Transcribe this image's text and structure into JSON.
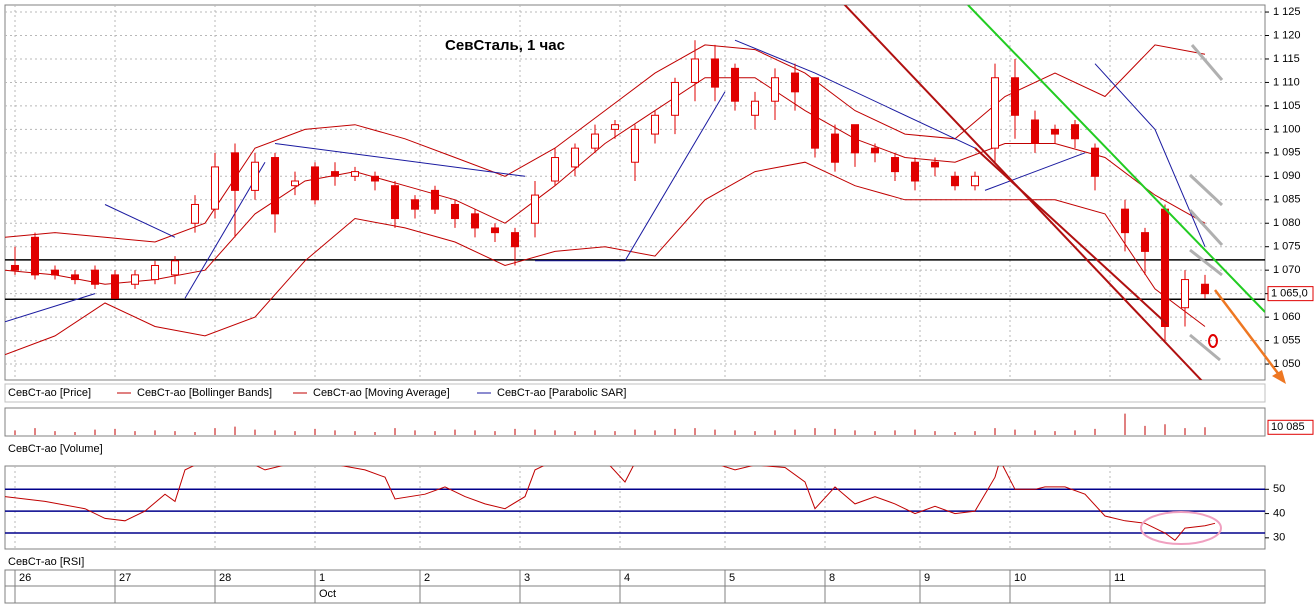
{
  "chart_data": [
    {
      "type": "candlestick",
      "title": "СевСталь, 1 час",
      "name": "СевСт-ао [Price]",
      "up_color": "#ffffff",
      "down_color": "#e00000",
      "line_color": "#c00000",
      "xlim": [
        0,
        126
      ],
      "ylim": [
        1046.6,
        1126.5
      ],
      "yticks": [
        {
          "value": 1050,
          "label": "1 050"
        },
        {
          "value": 1055,
          "label": "1 055"
        },
        {
          "value": 1060,
          "label": "1 060"
        },
        {
          "value": 1065,
          "label": "1 065"
        },
        {
          "value": 1070,
          "label": "1 070"
        },
        {
          "value": 1075,
          "label": "1 075"
        },
        {
          "value": 1080,
          "label": "1 080"
        },
        {
          "value": 1085,
          "label": "1 085"
        },
        {
          "value": 1090,
          "label": "1 090"
        },
        {
          "value": 1095,
          "label": "1 095"
        },
        {
          "value": 1100,
          "label": "1 100"
        },
        {
          "value": 1105,
          "label": "1 105"
        },
        {
          "value": 1110,
          "label": "1 110"
        },
        {
          "value": 1115,
          "label": "1 115"
        },
        {
          "value": 1120,
          "label": "1 120"
        },
        {
          "value": 1125,
          "label": "1 125"
        }
      ],
      "xticks": [
        {
          "value": 1.5,
          "label": "26"
        },
        {
          "value": 11.5,
          "label": "27"
        },
        {
          "value": 21.5,
          "label": "28"
        },
        {
          "value": 31.5,
          "label": "1"
        },
        {
          "value": 42,
          "label": "2"
        },
        {
          "value": 52,
          "label": "3"
        },
        {
          "value": 62,
          "label": "4"
        },
        {
          "value": 72.5,
          "label": "5"
        },
        {
          "value": 82.5,
          "label": "8"
        },
        {
          "value": 92,
          "label": "9"
        },
        {
          "value": 101,
          "label": "10"
        },
        {
          "value": 111,
          "label": "11"
        }
      ],
      "month_label": {
        "value": 31.5,
        "label": "Oct"
      },
      "grid": true,
      "hlines": [
        1072.2,
        1063.8
      ],
      "last_price": {
        "value": 1065,
        "label": "1 065,0"
      },
      "x": [
        1,
        3,
        5,
        7,
        9,
        11,
        13,
        15,
        17,
        19,
        21,
        23,
        25,
        27,
        29,
        31,
        33,
        35,
        37,
        39,
        41,
        43,
        45,
        47,
        49,
        51,
        53,
        55,
        57,
        59,
        61,
        63,
        65,
        67,
        69,
        71,
        73,
        75,
        77,
        79,
        81,
        83,
        85,
        87,
        89,
        91,
        93,
        95,
        97,
        99,
        101,
        103,
        105,
        107,
        109,
        112,
        114,
        116,
        118,
        120
      ],
      "open": [
        1071,
        1077,
        1070,
        1069,
        1070,
        1069,
        1067,
        1068,
        1069,
        1080,
        1083,
        1095,
        1087,
        1094,
        1088,
        1092,
        1091,
        1090,
        1090,
        1088,
        1085,
        1087,
        1084,
        1082,
        1079,
        1078,
        1080,
        1089,
        1092,
        1096,
        1100,
        1093,
        1099,
        1103,
        1110,
        1115,
        1113,
        1103,
        1106,
        1112,
        1111,
        1099,
        1101,
        1096,
        1094,
        1093,
        1093,
        1090,
        1088,
        1096,
        1111,
        1102,
        1100,
        1101,
        1096,
        1083,
        1078,
        1083,
        1062,
        1067
      ],
      "high": [
        1075,
        1078,
        1071,
        1070,
        1071,
        1070,
        1070,
        1072,
        1073,
        1086,
        1095,
        1097,
        1095,
        1095,
        1091,
        1093,
        1093,
        1092,
        1091,
        1089,
        1086,
        1088,
        1085,
        1083,
        1080,
        1079,
        1089,
        1096,
        1097,
        1101,
        1102,
        1101,
        1104,
        1111,
        1119,
        1118,
        1114,
        1108,
        1113,
        1114,
        1111,
        1101,
        1101,
        1097,
        1095,
        1094,
        1094,
        1091,
        1091,
        1114,
        1115,
        1104,
        1101,
        1102,
        1097,
        1085,
        1079,
        1084,
        1070,
        1069
      ],
      "low": [
        1069,
        1068,
        1068,
        1067,
        1066,
        1064,
        1066,
        1067,
        1067,
        1078,
        1081,
        1077,
        1085,
        1078,
        1086,
        1084,
        1088,
        1089,
        1087,
        1079,
        1081,
        1082,
        1079,
        1077,
        1076,
        1071,
        1077,
        1088,
        1090,
        1095,
        1098,
        1089,
        1097,
        1099,
        1106,
        1106,
        1104,
        1100,
        1102,
        1104,
        1094,
        1091,
        1092,
        1093,
        1089,
        1087,
        1090,
        1087,
        1087,
        1093,
        1098,
        1095,
        1097,
        1096,
        1087,
        1074,
        1069,
        1055,
        1058,
        1064
      ],
      "close": [
        1070,
        1069,
        1069,
        1068,
        1067,
        1064,
        1069,
        1071,
        1072,
        1084,
        1092,
        1087,
        1093,
        1082,
        1089,
        1085,
        1090,
        1091,
        1089,
        1081,
        1083,
        1083,
        1081,
        1079,
        1078,
        1075,
        1086,
        1094,
        1096,
        1099,
        1101,
        1100,
        1103,
        1110,
        1115,
        1109,
        1106,
        1106,
        1111,
        1108,
        1096,
        1093,
        1095,
        1095,
        1091,
        1089,
        1092,
        1088,
        1090,
        1111,
        1103,
        1097,
        1099,
        1098,
        1090,
        1078,
        1074,
        1058,
        1068,
        1065
      ],
      "series": [
        {
          "name": "СевСт-ао [Bollinger Bands]",
          "color": "#c00000",
          "x": [
            0,
            5,
            10,
            15,
            20,
            25,
            30,
            35,
            40,
            45,
            50,
            55,
            60,
            65,
            70,
            75,
            80,
            85,
            90,
            95,
            100,
            105,
            110,
            115,
            120
          ],
          "upper": [
            1077,
            1078,
            1077,
            1076,
            1080,
            1096,
            1100,
            1101,
            1098,
            1094,
            1090,
            1096,
            1104,
            1112,
            1118,
            1117,
            1112,
            1104,
            1099,
            1098,
            1107,
            1112,
            1107,
            1118,
            1116
          ],
          "lower": [
            1052,
            1056,
            1063,
            1058,
            1056,
            1060,
            1072,
            1081,
            1079,
            1076,
            1071,
            1074,
            1075,
            1073,
            1085,
            1091,
            1093,
            1088,
            1085,
            1085,
            1085,
            1085,
            1082,
            1066,
            1058
          ]
        },
        {
          "name": "СевСт-ао [Moving Average]",
          "color": "#c00000",
          "x": [
            0,
            5,
            10,
            15,
            20,
            25,
            30,
            35,
            40,
            45,
            50,
            55,
            60,
            65,
            70,
            75,
            80,
            85,
            90,
            95,
            100,
            105,
            110,
            115,
            120
          ],
          "values": [
            1070,
            1069,
            1067,
            1068,
            1070,
            1082,
            1089,
            1091,
            1088,
            1085,
            1080,
            1088,
            1097,
            1104,
            1111,
            1111,
            1104,
            1098,
            1094,
            1093,
            1097,
            1097,
            1094,
            1086,
            1080
          ]
        },
        {
          "name": "СевСт-ао [Parabolic SAR]",
          "color": "#1a1aa0",
          "x": [
            0,
            9,
            9.5,
            10,
            17,
            17.5,
            18,
            26,
            26.5,
            27,
            52,
            52.5,
            53,
            62,
            72,
            72.5,
            73,
            81,
            97,
            97.5,
            98,
            108,
            108.5,
            109,
            115,
            120
          ],
          "values": [
            1059,
            1065,
            null,
            1084,
            1077,
            null,
            1064,
            1093,
            null,
            1097,
            1090,
            null,
            1072,
            1072,
            1108,
            null,
            1119,
            1112,
            1096,
            null,
            1087,
            1095,
            null,
            1114,
            1100,
            1075
          ]
        }
      ]
    },
    {
      "type": "bar",
      "name": "СевСт-ао [Volume]",
      "color": "#c00000",
      "xlim": [
        0,
        126
      ],
      "ylim": [
        0,
        34000
      ],
      "last_value": {
        "value": 10085,
        "label": "10 085"
      },
      "x": [
        1,
        3,
        5,
        7,
        9,
        11,
        13,
        15,
        17,
        19,
        21,
        23,
        25,
        27,
        29,
        31,
        33,
        35,
        37,
        39,
        41,
        43,
        45,
        47,
        49,
        51,
        53,
        55,
        57,
        59,
        61,
        63,
        65,
        67,
        69,
        71,
        73,
        75,
        77,
        79,
        81,
        83,
        85,
        87,
        89,
        91,
        93,
        95,
        97,
        99,
        101,
        103,
        105,
        107,
        109,
        112,
        114,
        116,
        118,
        120
      ],
      "values": [
        6000,
        9000,
        5000,
        4000,
        7000,
        8000,
        5000,
        6000,
        5000,
        4000,
        9000,
        11000,
        7000,
        6000,
        5000,
        8000,
        6000,
        5000,
        4000,
        9000,
        6000,
        5000,
        7000,
        6000,
        5000,
        8000,
        7000,
        6000,
        5000,
        6000,
        5000,
        7000,
        6000,
        8000,
        9000,
        7000,
        6000,
        5000,
        6000,
        7000,
        9000,
        8000,
        6000,
        5000,
        6000,
        7000,
        5000,
        4000,
        5000,
        9000,
        7000,
        6000,
        5000,
        6000,
        8000,
        28000,
        12000,
        14000,
        9000,
        10085
      ]
    },
    {
      "type": "line",
      "name": "СевСт-ао [RSI]",
      "color": "#c00000",
      "xlim": [
        0,
        126
      ],
      "ylim": [
        25.4,
        59.6
      ],
      "yticks": [
        30,
        40,
        50
      ],
      "hlines": [
        50,
        41,
        32
      ],
      "hline_color": "#00008b",
      "x": [
        0,
        4,
        8,
        10,
        12,
        14,
        16,
        17,
        18,
        20,
        24,
        26,
        28,
        30,
        32,
        36,
        38,
        39,
        42,
        44,
        46,
        48,
        50,
        52,
        53,
        55,
        60,
        62,
        63,
        66,
        70,
        73,
        75,
        78,
        80,
        81,
        83,
        85,
        87,
        89,
        91,
        93,
        95,
        97,
        99,
        99.5,
        101,
        103,
        104,
        106,
        108,
        110,
        112,
        114,
        116,
        117,
        118,
        120,
        121
      ],
      "values": [
        47,
        45,
        42,
        38,
        37,
        41,
        48,
        45,
        58,
        62,
        62,
        58,
        60,
        63,
        61,
        58,
        55,
        46,
        48,
        51,
        47,
        44,
        42,
        47,
        58,
        62,
        62,
        53,
        61,
        62,
        62,
        58,
        60,
        59,
        53,
        42,
        51,
        44,
        47,
        44,
        40,
        43,
        40,
        41,
        55,
        62,
        50,
        50,
        51,
        51,
        48,
        39,
        37,
        36,
        32,
        29,
        34,
        35,
        36
      ]
    }
  ]
}
